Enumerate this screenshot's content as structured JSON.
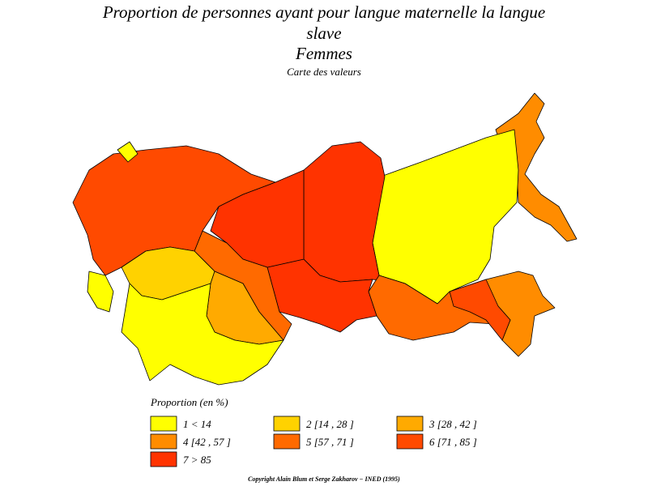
{
  "header": {
    "title": "Proportion de personnes ayant pour langue maternelle la langue slave",
    "subtitle": "Femmes",
    "caption": "Carte des valeurs"
  },
  "legend": {
    "title": "Proportion (en %)",
    "items": [
      {
        "label": "1 < 14",
        "color": "#ffff00"
      },
      {
        "label": "2 [14 , 28 ]",
        "color": "#ffd200"
      },
      {
        "label": "3 [28 , 42 ]",
        "color": "#ffaa00"
      },
      {
        "label": "4 [42 , 57 ]",
        "color": "#ff8c00"
      },
      {
        "label": "5 [57 , 71 ]",
        "color": "#ff6a00"
      },
      {
        "label": "6 [71 , 85 ]",
        "color": "#ff4a00"
      },
      {
        "label": "7 > 85",
        "color": "#ff3300"
      }
    ]
  },
  "footer": {
    "copyright": "Copyright Alain Blum et Serge Zakharov − INED (1995)"
  }
}
